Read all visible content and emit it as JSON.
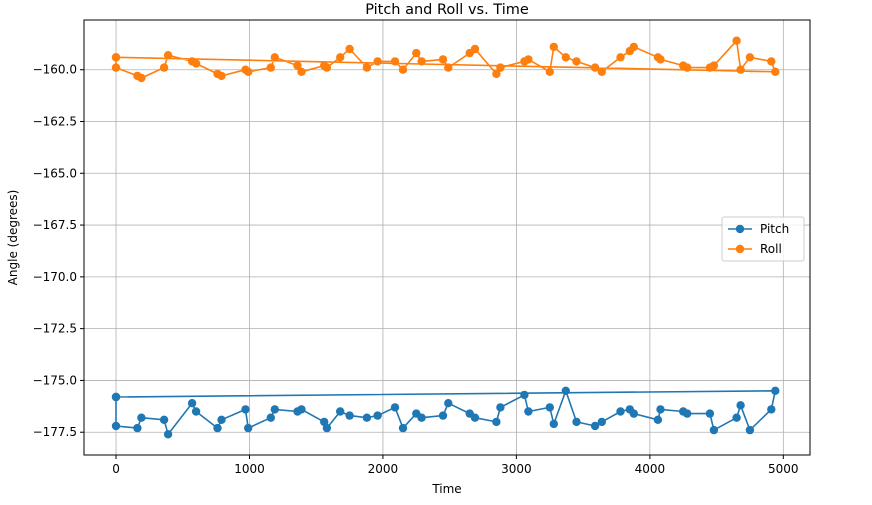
{
  "chart_data": {
    "type": "line",
    "title": "Pitch and Roll vs. Time",
    "xlabel": "Time",
    "ylabel": "Angle (degrees)",
    "xlim": [
      -240,
      5200
    ],
    "ylim": [
      -178.6,
      -157.6
    ],
    "xticks": [
      0,
      1000,
      2000,
      3000,
      4000,
      5000
    ],
    "xtick_labels": [
      "0",
      "1000",
      "2000",
      "3000",
      "4000",
      "5000"
    ],
    "yticks": [
      -160.0,
      -162.5,
      -165.0,
      -167.5,
      -170.0,
      -172.5,
      -175.0,
      -177.5
    ],
    "ytick_labels": [
      "−160.0",
      "−162.5",
      "−165.0",
      "−167.5",
      "−170.0",
      "−172.5",
      "−175.0",
      "−177.5"
    ],
    "grid": true,
    "legend_position": "center-right",
    "series": [
      {
        "name": "Pitch",
        "color": "#1f77b4",
        "marker": "circle",
        "points": [
          [
            0,
            -175.8
          ],
          [
            0,
            -177.2
          ],
          [
            160,
            -177.3
          ],
          [
            190,
            -176.8
          ],
          [
            360,
            -176.9
          ],
          [
            390,
            -177.6
          ],
          [
            570,
            -176.1
          ],
          [
            600,
            -176.5
          ],
          [
            760,
            -177.3
          ],
          [
            790,
            -176.9
          ],
          [
            970,
            -176.4
          ],
          [
            990,
            -177.3
          ],
          [
            1160,
            -176.8
          ],
          [
            1190,
            -176.4
          ],
          [
            1360,
            -176.5
          ],
          [
            1390,
            -176.4
          ],
          [
            1560,
            -177.0
          ],
          [
            1580,
            -177.3
          ],
          [
            1680,
            -176.5
          ],
          [
            1750,
            -176.7
          ],
          [
            1880,
            -176.8
          ],
          [
            1960,
            -176.7
          ],
          [
            2090,
            -176.3
          ],
          [
            2150,
            -177.3
          ],
          [
            2250,
            -176.6
          ],
          [
            2290,
            -176.8
          ],
          [
            2450,
            -176.7
          ],
          [
            2490,
            -176.1
          ],
          [
            2650,
            -176.6
          ],
          [
            2690,
            -176.8
          ],
          [
            2850,
            -177.0
          ],
          [
            2880,
            -176.3
          ],
          [
            3060,
            -175.7
          ],
          [
            3090,
            -176.5
          ],
          [
            3250,
            -176.3
          ],
          [
            3280,
            -177.1
          ],
          [
            3370,
            -175.5
          ],
          [
            3450,
            -177.0
          ],
          [
            3590,
            -177.2
          ],
          [
            3640,
            -177.0
          ],
          [
            3780,
            -176.5
          ],
          [
            3850,
            -176.4
          ],
          [
            3880,
            -176.6
          ],
          [
            4060,
            -176.9
          ],
          [
            4080,
            -176.4
          ],
          [
            4250,
            -176.5
          ],
          [
            4280,
            -176.6
          ],
          [
            4450,
            -176.6
          ],
          [
            4480,
            -177.4
          ],
          [
            4650,
            -176.8
          ],
          [
            4680,
            -176.2
          ],
          [
            4750,
            -177.4
          ],
          [
            4910,
            -176.4
          ],
          [
            4940,
            -175.5
          ],
          [
            0,
            -175.8
          ]
        ]
      },
      {
        "name": "Roll",
        "color": "#ff7f0e",
        "marker": "circle",
        "points": [
          [
            0,
            -159.4
          ],
          [
            0,
            -159.9
          ],
          [
            160,
            -160.3
          ],
          [
            190,
            -160.4
          ],
          [
            360,
            -159.9
          ],
          [
            390,
            -159.3
          ],
          [
            570,
            -159.6
          ],
          [
            600,
            -159.7
          ],
          [
            760,
            -160.2
          ],
          [
            790,
            -160.3
          ],
          [
            970,
            -160.0
          ],
          [
            990,
            -160.1
          ],
          [
            1160,
            -159.9
          ],
          [
            1190,
            -159.4
          ],
          [
            1360,
            -159.8
          ],
          [
            1390,
            -160.1
          ],
          [
            1560,
            -159.8
          ],
          [
            1580,
            -159.9
          ],
          [
            1680,
            -159.4
          ],
          [
            1750,
            -159.0
          ],
          [
            1880,
            -159.9
          ],
          [
            1960,
            -159.6
          ],
          [
            2090,
            -159.6
          ],
          [
            2150,
            -160.0
          ],
          [
            2250,
            -159.2
          ],
          [
            2290,
            -159.6
          ],
          [
            2450,
            -159.5
          ],
          [
            2490,
            -159.9
          ],
          [
            2650,
            -159.2
          ],
          [
            2690,
            -159.0
          ],
          [
            2850,
            -160.2
          ],
          [
            2880,
            -159.9
          ],
          [
            3060,
            -159.6
          ],
          [
            3090,
            -159.5
          ],
          [
            3250,
            -160.1
          ],
          [
            3280,
            -158.9
          ],
          [
            3370,
            -159.4
          ],
          [
            3450,
            -159.6
          ],
          [
            3590,
            -159.9
          ],
          [
            3640,
            -160.1
          ],
          [
            3780,
            -159.4
          ],
          [
            3850,
            -159.1
          ],
          [
            3880,
            -158.9
          ],
          [
            4060,
            -159.4
          ],
          [
            4080,
            -159.5
          ],
          [
            4250,
            -159.8
          ],
          [
            4280,
            -159.9
          ],
          [
            4450,
            -159.9
          ],
          [
            4480,
            -159.8
          ],
          [
            4650,
            -158.6
          ],
          [
            4680,
            -160.0
          ],
          [
            4750,
            -159.4
          ],
          [
            4910,
            -159.6
          ],
          [
            4940,
            -160.1
          ],
          [
            0,
            -159.4
          ]
        ]
      }
    ]
  }
}
